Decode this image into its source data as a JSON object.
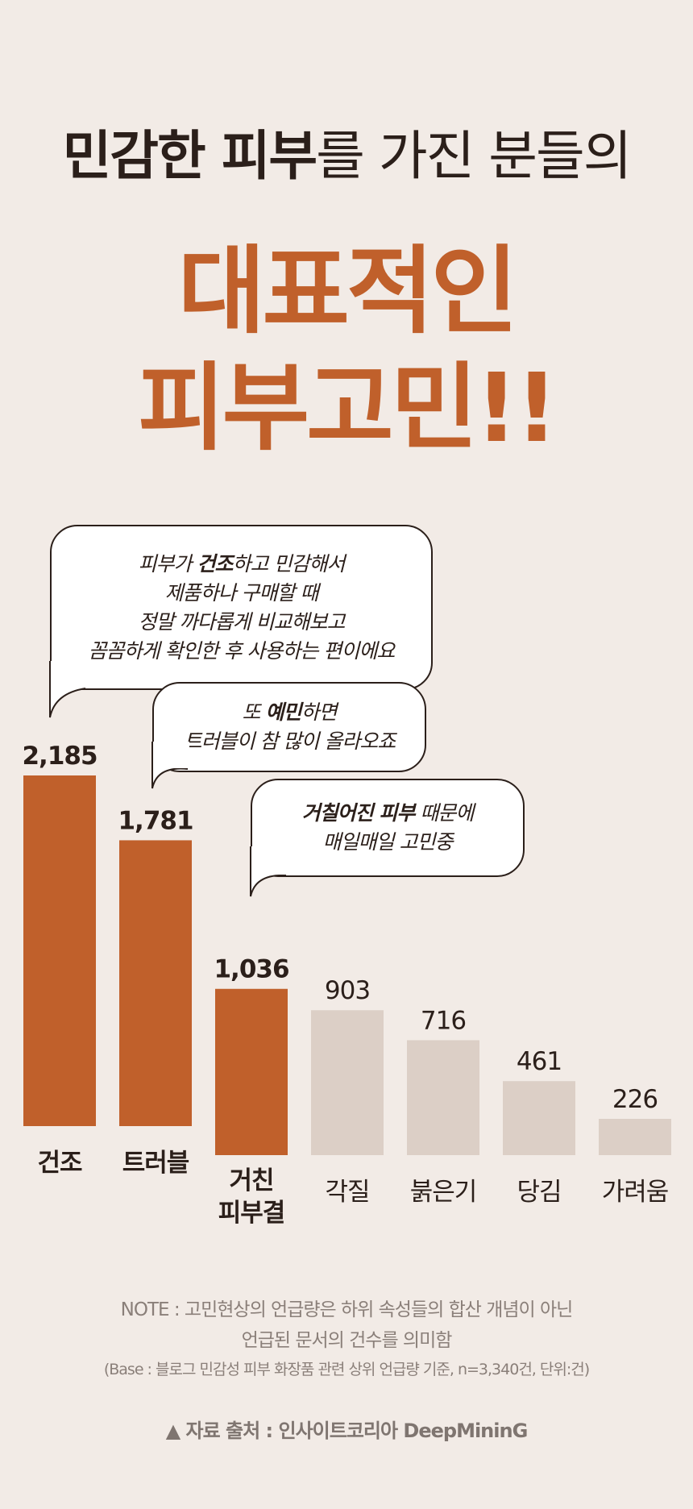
{
  "title": {
    "top_prefix": "민감한 피부",
    "top_suffix": "를 가진 분들의",
    "main_line1": "대표적인",
    "main_line2": "피부고민!!"
  },
  "bubbles": [
    {
      "pre": "피부가 ",
      "bold": "건조",
      "post": "하고 민감해서",
      "lines": [
        "제품하나 구매할 때",
        "정말 까다롭게 비교해보고",
        "꼼꼼하게 확인한 후 사용하는 편이에요"
      ]
    },
    {
      "pre": "또 ",
      "bold": "예민",
      "post": "하면",
      "lines": [
        "트러블이 참 많이 올라오죠"
      ]
    },
    {
      "pre": "",
      "bold": "거칠어진 피부",
      "post": " 때문에",
      "lines": [
        "매일매일 고민중"
      ]
    }
  ],
  "chart_data": {
    "type": "bar",
    "categories": [
      "건조",
      "트러블",
      "거친\n피부결",
      "각질",
      "붉은기",
      "당김",
      "가려움"
    ],
    "values": [
      2185,
      1781,
      1036,
      903,
      716,
      461,
      226
    ],
    "value_labels": [
      "2,185",
      "1,781",
      "1,036",
      "903",
      "716",
      "461",
      "226"
    ],
    "highlighted": [
      true,
      true,
      true,
      false,
      false,
      false,
      false
    ],
    "colors": {
      "highlight": "#c0602b",
      "normal": "#dccfc6"
    }
  },
  "notes": {
    "line1": "NOTE :  고민현상의 언급량은 하위 속성들의 합산 개념이 아닌",
    "line2": "언급된 문서의 건수를 의미함",
    "base": "(Base : 블로그 민감성 피부 화장품 관련 상위 언급량 기준, n=3,340건, 단위:건)",
    "source": "▲ 자료 출처 : 인사이트코리아 DeepMininG"
  }
}
